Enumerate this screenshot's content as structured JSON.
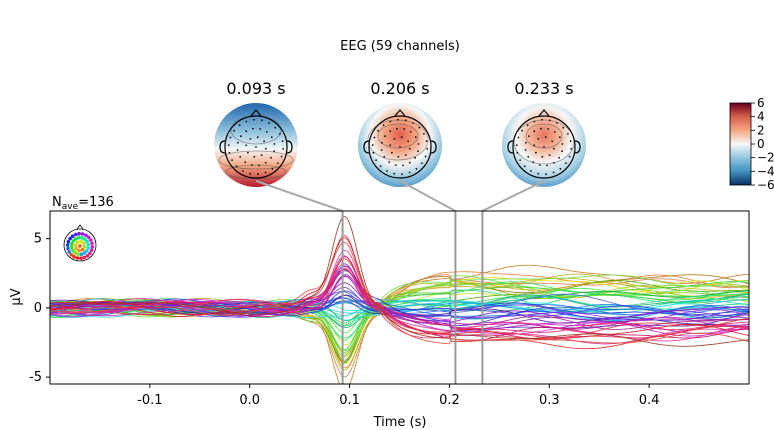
{
  "figure": {
    "title": "EEG (59 channels)",
    "nave_prefix": "N",
    "nave_sub": "ave",
    "nave_value": "=136"
  },
  "chart_data": [
    {
      "type": "line",
      "title": "",
      "xlabel": "Time (s)",
      "ylabel": "µV",
      "xlim": [
        -0.2,
        0.5
      ],
      "ylim": [
        -5.5,
        7.0
      ],
      "xticks": [
        -0.1,
        0.0,
        0.1,
        0.2,
        0.3,
        0.4
      ],
      "xtick_labels": [
        "-0.1",
        "0.0",
        "0.1",
        "0.2",
        "0.3",
        "0.4"
      ],
      "yticks": [
        -5,
        0,
        5
      ],
      "ytick_labels": [
        "-5",
        "0",
        "5"
      ],
      "grid": false,
      "legend": "sensor-position inset, top-left",
      "n_channels": 59,
      "marked_times": [
        0.093,
        0.206,
        0.233
      ],
      "series_description": "59 EEG channel averages; peak near 0.093 s (~+6.5 µV / ~-5 µV), sustained divergence 0.15–0.5 s"
    },
    {
      "type": "heatmap",
      "kind": "topomaps",
      "times_labels": [
        "0.093 s",
        "0.206 s",
        "0.233 s"
      ],
      "colorbar": {
        "vmin": -6,
        "vmax": 6,
        "ticks": [
          6,
          4,
          2,
          0,
          -2,
          -4,
          -6
        ],
        "tick_labels": [
          "6",
          "4",
          "2",
          "0",
          "−2",
          "−4",
          "−6"
        ],
        "colors": [
          "#67001f",
          "#d6604d",
          "#f4a582",
          "#f7f7f7",
          "#92c5de",
          "#4393c3",
          "#053061"
        ]
      }
    }
  ]
}
